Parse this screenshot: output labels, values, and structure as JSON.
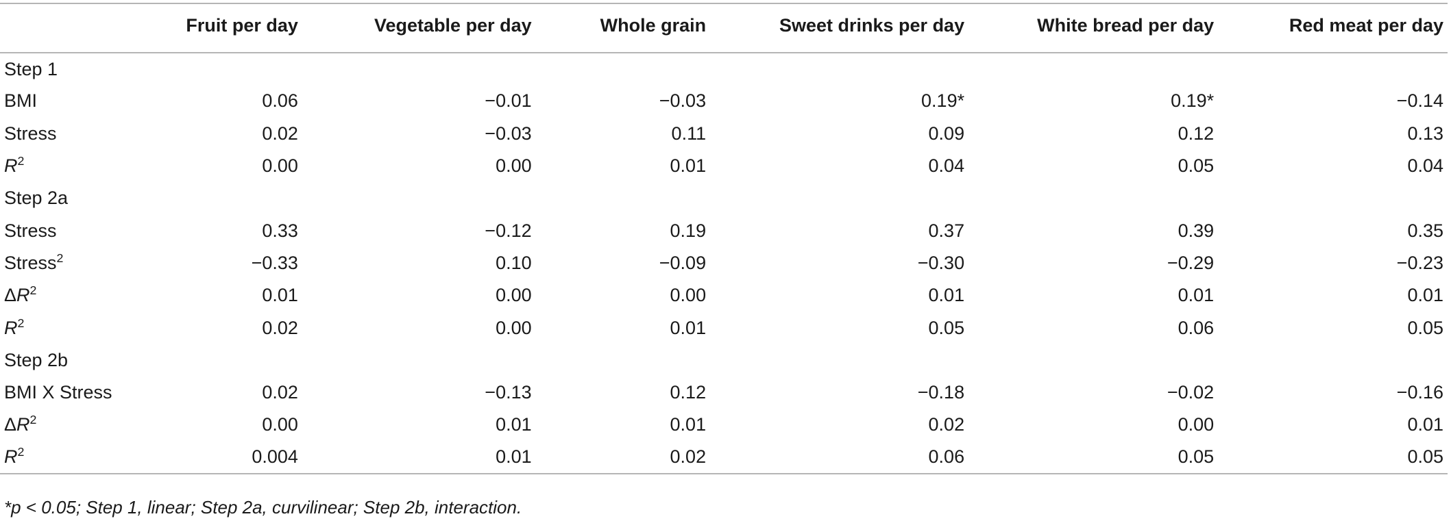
{
  "table": {
    "columns": [
      "",
      "Fruit per day",
      "Vegetable per day",
      "Whole grain",
      "Sweet drinks per day",
      "White bread per day",
      "Red meat per day"
    ],
    "rows": [
      {
        "label": "Step 1",
        "values": [
          "",
          "",
          "",
          "",
          "",
          ""
        ]
      },
      {
        "label": "BMI",
        "values": [
          "0.06",
          "−0.01",
          "−0.03",
          "0.19*",
          "0.19*",
          "−0.14"
        ]
      },
      {
        "label": "Stress",
        "values": [
          "0.02",
          "−0.03",
          "0.11",
          "0.09",
          "0.12",
          "0.13"
        ]
      },
      {
        "label_prefix": "",
        "label_italic": "R",
        "label_sup": "2",
        "values": [
          "0.00",
          "0.00",
          "0.01",
          "0.04",
          "0.05",
          "0.04"
        ]
      },
      {
        "label": "Step 2a",
        "values": [
          "",
          "",
          "",
          "",
          "",
          ""
        ]
      },
      {
        "label": "Stress",
        "values": [
          "0.33",
          "−0.12",
          "0.19",
          "0.37",
          "0.39",
          "0.35"
        ]
      },
      {
        "label_prefix": "Stress",
        "label_italic": "",
        "label_sup": "2",
        "values": [
          "−0.33",
          "0.10",
          "−0.09",
          "−0.30",
          "−0.29",
          "−0.23"
        ]
      },
      {
        "label_prefix": "Δ",
        "label_italic": "R",
        "label_sup": "2",
        "values": [
          "0.01",
          "0.00",
          "0.00",
          "0.01",
          "0.01",
          "0.01"
        ]
      },
      {
        "label_prefix": "",
        "label_italic": "R",
        "label_sup": "2",
        "values": [
          "0.02",
          "0.00",
          "0.01",
          "0.05",
          "0.06",
          "0.05"
        ]
      },
      {
        "label": "Step 2b",
        "values": [
          "",
          "",
          "",
          "",
          "",
          ""
        ]
      },
      {
        "label": "BMI X Stress",
        "values": [
          "0.02",
          "−0.13",
          "0.12",
          "−0.18",
          "−0.02",
          "−0.16"
        ]
      },
      {
        "label_prefix": "Δ",
        "label_italic": "R",
        "label_sup": "2",
        "values": [
          "0.00",
          "0.01",
          "0.01",
          "0.02",
          "0.00",
          "0.01"
        ]
      },
      {
        "label_prefix": "",
        "label_italic": "R",
        "label_sup": "2",
        "values": [
          "0.004",
          "0.01",
          "0.02",
          "0.06",
          "0.05",
          "0.05"
        ]
      }
    ]
  },
  "footnote": "*p < 0.05; Step 1, linear; Step 2a, curvilinear; Step 2b, interaction."
}
